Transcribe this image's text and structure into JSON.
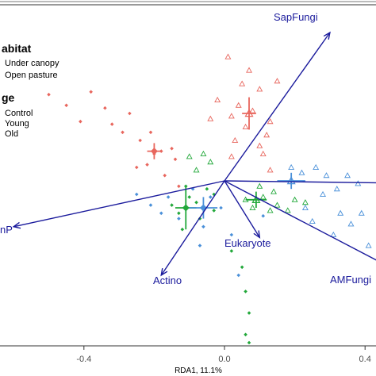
{
  "chart_data": {
    "type": "scatter",
    "subtype": "RDA biplot",
    "xlabel": "RDA1, 11.1%",
    "xlim": [
      -0.62,
      0.52
    ],
    "ylim": [
      -0.8,
      0.62
    ],
    "x_ticks": [
      -0.4,
      0.0,
      0.4
    ],
    "x_tick_labels": [
      "-0.4",
      "0.0",
      "0.4"
    ],
    "grid": false,
    "legend": {
      "position": "top-left",
      "groups": [
        {
          "title": "abitat",
          "entries": [
            {
              "label": "Under canopy",
              "symbol": "filled-diamond"
            },
            {
              "label": "Open pasture",
              "symbol": "open-triangle"
            }
          ]
        },
        {
          "title": "ge",
          "entries": [
            {
              "label": "Control",
              "color": "#1b1b1b"
            },
            {
              "label": "Young",
              "color": "#1b1b1b"
            },
            {
              "label": "Old",
              "color": "#1b1b1b"
            }
          ]
        }
      ]
    },
    "arrow_color": "#1a1a9c",
    "series_colors": {
      "red": "#e8665d",
      "green": "#22a83a",
      "blue": "#4a90d9"
    },
    "arrows": [
      {
        "label": "SapFungi",
        "x": 0.3,
        "y": 0.55
      },
      {
        "label": "",
        "x": 0.6,
        "y": -0.01
      },
      {
        "label": "nP",
        "x": -0.6,
        "y": -0.17
      },
      {
        "label": "Actino",
        "x": -0.18,
        "y": -0.35
      },
      {
        "label": "Eukaryote",
        "x": 0.1,
        "y": -0.21
      },
      {
        "label": "AMFungi",
        "x": 0.5,
        "y": -0.34
      }
    ],
    "series": [
      {
        "name": "",
        "habitat": "Under canopy",
        "color": "red",
        "marker": "diamond",
        "points": [
          [
            -0.5,
            0.32
          ],
          [
            -0.45,
            0.28
          ],
          [
            -0.41,
            0.22
          ],
          [
            -0.38,
            0.33
          ],
          [
            -0.34,
            0.27
          ],
          [
            -0.32,
            0.21
          ],
          [
            -0.29,
            0.18
          ],
          [
            -0.27,
            0.25
          ],
          [
            -0.24,
            0.15
          ],
          [
            -0.22,
            0.06
          ],
          [
            -0.2,
            0.1
          ],
          [
            -0.25,
            0.05
          ],
          [
            -0.17,
            0.02
          ],
          [
            -0.14,
            0.08
          ],
          [
            -0.13,
            -0.02
          ],
          [
            -0.18,
            0.11
          ],
          [
            -0.21,
            0.18
          ],
          [
            -0.15,
            0.12
          ]
        ]
      },
      {
        "name": "",
        "habitat": "Open pasture",
        "color": "red",
        "marker": "triangle",
        "points": [
          [
            0.01,
            0.46
          ],
          [
            0.07,
            0.41
          ],
          [
            0.15,
            0.37
          ],
          [
            0.1,
            0.34
          ],
          [
            0.04,
            0.28
          ],
          [
            0.08,
            0.26
          ],
          [
            0.02,
            0.24
          ],
          [
            -0.02,
            0.3
          ],
          [
            -0.04,
            0.23
          ],
          [
            0.06,
            0.2
          ],
          [
            0.12,
            0.17
          ],
          [
            0.1,
            0.13
          ],
          [
            0.13,
            0.22
          ],
          [
            0.03,
            0.15
          ],
          [
            0.11,
            0.1
          ],
          [
            0.05,
            0.36
          ],
          [
            0.02,
            0.09
          ],
          [
            0.13,
            0.04
          ]
        ]
      },
      {
        "name": "",
        "habitat": "Under canopy",
        "color": "green",
        "marker": "diamond",
        "points": [
          [
            -0.1,
            -0.06
          ],
          [
            -0.13,
            -0.12
          ],
          [
            -0.08,
            -0.08
          ],
          [
            -0.05,
            -0.03
          ],
          [
            -0.11,
            -0.02
          ],
          [
            -0.15,
            -0.09
          ],
          [
            -0.07,
            -0.14
          ],
          [
            -0.12,
            -0.18
          ],
          [
            -0.03,
            -0.11
          ],
          [
            0.02,
            -0.26
          ],
          [
            0.05,
            -0.32
          ],
          [
            0.06,
            -0.41
          ],
          [
            0.07,
            -0.49
          ],
          [
            0.06,
            -0.57
          ],
          [
            0.07,
            -0.6
          ],
          [
            -0.03,
            -0.05
          ]
        ]
      },
      {
        "name": "",
        "habitat": "Open pasture",
        "color": "green",
        "marker": "triangle",
        "points": [
          [
            -0.1,
            0.09
          ],
          [
            -0.06,
            0.1
          ],
          [
            -0.08,
            0.04
          ],
          [
            -0.04,
            0.07
          ],
          [
            0.06,
            -0.07
          ],
          [
            0.11,
            -0.06
          ],
          [
            0.14,
            -0.04
          ],
          [
            0.08,
            -0.1
          ],
          [
            0.15,
            -0.09
          ],
          [
            0.2,
            -0.07
          ],
          [
            0.23,
            -0.08
          ],
          [
            0.1,
            -0.02
          ],
          [
            0.13,
            -0.11
          ],
          [
            0.18,
            -0.11
          ]
        ]
      },
      {
        "name": "",
        "habitat": "Under canopy",
        "color": "blue",
        "marker": "diamond",
        "points": [
          [
            -0.25,
            -0.05
          ],
          [
            -0.21,
            -0.09
          ],
          [
            -0.16,
            -0.06
          ],
          [
            -0.09,
            -0.03
          ],
          [
            -0.04,
            -0.06
          ],
          [
            -0.13,
            -0.14
          ],
          [
            -0.06,
            -0.17
          ],
          [
            -0.01,
            -0.1
          ],
          [
            -0.18,
            -0.12
          ],
          [
            0.11,
            -0.13
          ],
          [
            0.02,
            -0.2
          ],
          [
            -0.07,
            -0.24
          ],
          [
            0.04,
            -0.35
          ]
        ]
      },
      {
        "name": "",
        "habitat": "Open pasture",
        "color": "blue",
        "marker": "triangle",
        "points": [
          [
            0.19,
            0.05
          ],
          [
            0.22,
            0.03
          ],
          [
            0.26,
            0.05
          ],
          [
            0.29,
            0.02
          ],
          [
            0.32,
            -0.03
          ],
          [
            0.28,
            -0.05
          ],
          [
            0.23,
            -0.1
          ],
          [
            0.35,
            0.02
          ],
          [
            0.38,
            -0.01
          ],
          [
            0.25,
            -0.15
          ],
          [
            0.31,
            -0.2
          ],
          [
            0.36,
            -0.16
          ],
          [
            0.39,
            -0.12
          ],
          [
            0.44,
            -0.09
          ],
          [
            0.41,
            -0.24
          ],
          [
            0.33,
            -0.12
          ]
        ]
      }
    ],
    "centroids": [
      {
        "color": "red",
        "marker": "triangle",
        "x": 0.07,
        "y": 0.25,
        "err_x": 0.02,
        "err_y": 0.06
      },
      {
        "color": "red",
        "marker": "diamond",
        "x": -0.2,
        "y": 0.11,
        "err_x": 0.02,
        "err_y": 0.03
      },
      {
        "color": "green",
        "marker": "diamond",
        "x": -0.11,
        "y": -0.1,
        "err_x": 0.03,
        "err_y": 0.08
      },
      {
        "color": "blue",
        "marker": "diamond",
        "x": -0.06,
        "y": -0.1,
        "err_x": 0.04,
        "err_y": 0.04
      },
      {
        "color": "green",
        "marker": "triangle",
        "x": 0.09,
        "y": -0.07,
        "err_x": 0.03,
        "err_y": 0.03
      },
      {
        "color": "blue",
        "marker": "triangle",
        "x": 0.19,
        "y": 0.0,
        "err_x": 0.04,
        "err_y": 0.03
      }
    ]
  }
}
